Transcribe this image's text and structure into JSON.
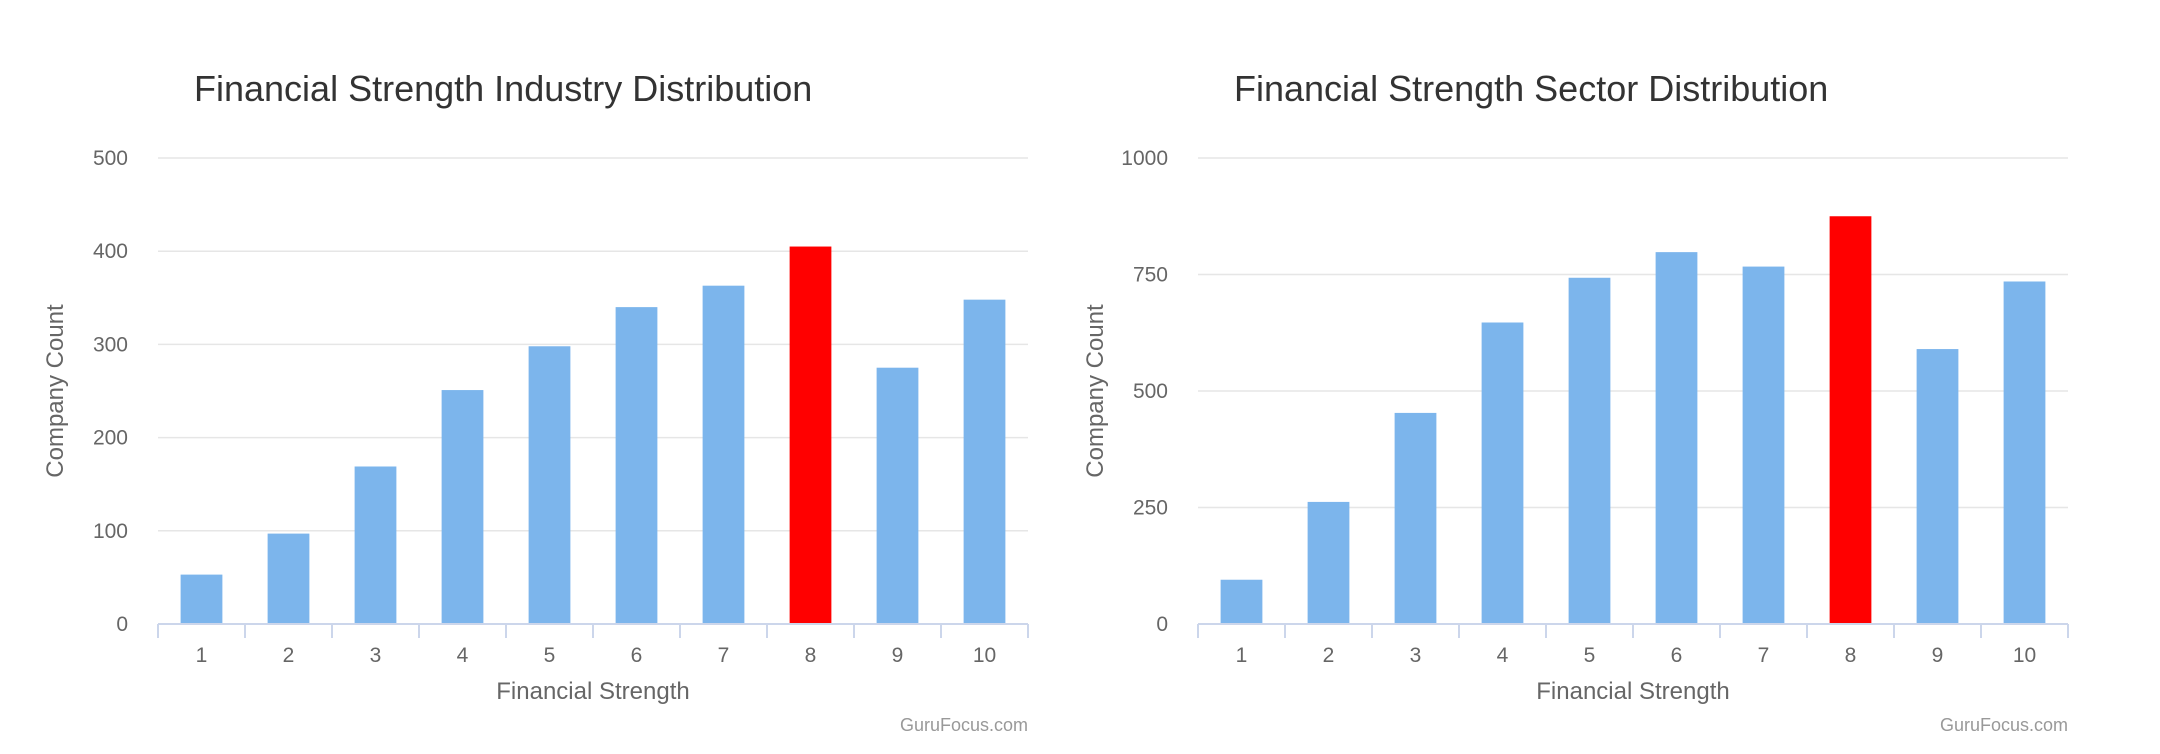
{
  "charts": [
    {
      "title": "Financial Strength Industry Distribution",
      "credits": "GuruFocus.com"
    },
    {
      "title": "Financial Strength Sector Distribution",
      "credits": "GuruFocus.com"
    }
  ],
  "colors": {
    "bar": "#7cb5ec",
    "highlight": "#ff0000"
  },
  "chart_data": [
    {
      "type": "bar",
      "title": "Financial Strength Industry Distribution",
      "xlabel": "Financial Strength",
      "ylabel": "Company Count",
      "categories": [
        "1",
        "2",
        "3",
        "4",
        "5",
        "6",
        "7",
        "8",
        "9",
        "10"
      ],
      "values": [
        53,
        97,
        169,
        251,
        298,
        340,
        363,
        405,
        275,
        348
      ],
      "highlight_category": "8",
      "ylim": [
        0,
        500
      ],
      "yticks": [
        0,
        100,
        200,
        300,
        400,
        500
      ],
      "grid": true,
      "legend": "none"
    },
    {
      "type": "bar",
      "title": "Financial Strength Sector Distribution",
      "xlabel": "Financial Strength",
      "ylabel": "Company Count",
      "categories": [
        "1",
        "2",
        "3",
        "4",
        "5",
        "6",
        "7",
        "8",
        "9",
        "10"
      ],
      "values": [
        95,
        262,
        453,
        647,
        743,
        798,
        767,
        875,
        590,
        735
      ],
      "highlight_category": "8",
      "ylim": [
        0,
        1000
      ],
      "yticks": [
        0,
        250,
        500,
        750,
        1000
      ],
      "grid": true,
      "legend": "none"
    }
  ]
}
